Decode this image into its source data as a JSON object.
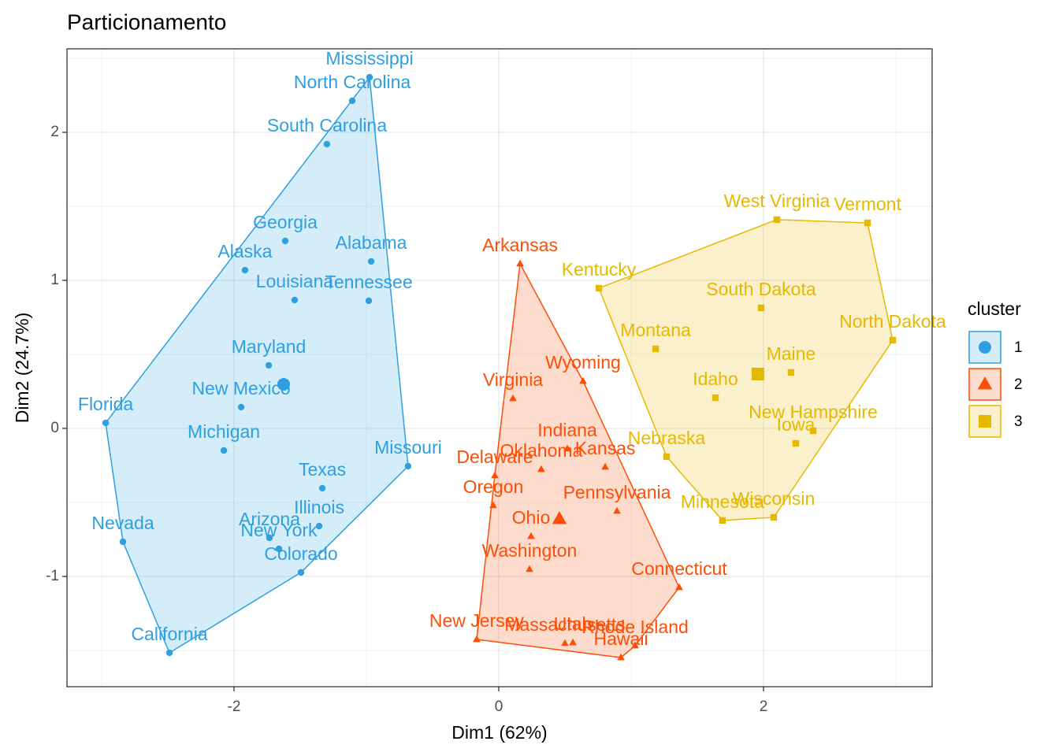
{
  "chart_data": {
    "type": "scatter",
    "title": "Particionamento",
    "x_label": "Dim1 (62%)",
    "y_label": "Dim2 (24.7%)",
    "xlim": [
      -3.262,
      3.274
    ],
    "ylim": [
      -1.745,
      2.564
    ],
    "xticks": [
      -2,
      0,
      2
    ],
    "yticks": [
      -1,
      0,
      1,
      2
    ],
    "grid": true,
    "legend_title": "cluster",
    "legend_position": "right",
    "series": [
      {
        "name": "1",
        "color": "#2E9FDF",
        "shape": "circle",
        "centroid": [
          -1.625,
          0.298
        ],
        "labels": [
          "Mississippi",
          "North Carolina",
          "South Carolina",
          "Georgia",
          "Alaska",
          "Alabama",
          "Louisiana",
          "Tennessee",
          "Maryland",
          "New Mexico",
          "Florida",
          "Michigan",
          "Missouri",
          "Texas",
          "Illinois",
          "Arizona",
          "New York",
          "Colorado",
          "Nevada",
          "California"
        ],
        "x": [
          -0.976,
          -1.107,
          -1.298,
          -1.613,
          -1.917,
          -0.964,
          -1.542,
          -0.982,
          -1.738,
          -1.946,
          -2.97,
          -2.077,
          -0.685,
          -1.333,
          -1.357,
          -1.732,
          -1.661,
          -1.494,
          -2.839,
          -2.488
        ],
        "y": [
          2.372,
          2.213,
          1.92,
          1.266,
          1.069,
          1.128,
          0.867,
          0.862,
          0.426,
          0.144,
          0.037,
          -0.149,
          -0.255,
          -0.404,
          -0.66,
          -0.739,
          -0.814,
          -0.973,
          -0.766,
          -1.516
        ]
      },
      {
        "name": "2",
        "color": "#FC4E07",
        "shape": "triangle",
        "centroid": [
          0.458,
          -0.612
        ],
        "labels": [
          "Arkansas",
          "Virginia",
          "Wyoming",
          "Indiana",
          "Oklahoma",
          "Kansas",
          "Delaware",
          "Oregon",
          "Pennsylvania",
          "Ohio",
          "Washington",
          "Connecticut",
          "New Jersey",
          "Massachusetts",
          "Utah",
          "Rhode Island",
          "Hawaii"
        ],
        "x": [
          0.161,
          0.107,
          0.637,
          0.518,
          0.321,
          0.804,
          -0.03,
          -0.042,
          0.893,
          0.244,
          0.232,
          1.363,
          -0.167,
          0.5,
          0.56,
          1.03,
          0.923
        ],
        "y": [
          1.112,
          0.202,
          0.319,
          -0.138,
          -0.277,
          -0.261,
          -0.319,
          -0.521,
          -0.559,
          -0.729,
          -0.952,
          -1.074,
          -1.426,
          -1.452,
          -1.447,
          -1.468,
          -1.548
        ]
      },
      {
        "name": "3",
        "color": "#E7B800",
        "shape": "square",
        "centroid": [
          1.958,
          0.367
        ],
        "labels": [
          "West Virginia",
          "Vermont",
          "Kentucky",
          "South Dakota",
          "North Dakota",
          "Montana",
          "Maine",
          "Idaho",
          "New Hampshire",
          "Iowa",
          "Nebraska",
          "Minnesota",
          "Wisconsin"
        ],
        "x": [
          2.101,
          2.786,
          0.756,
          1.982,
          2.976,
          1.185,
          2.208,
          1.637,
          2.375,
          2.244,
          1.268,
          1.69,
          2.077
        ],
        "y": [
          1.41,
          1.388,
          0.947,
          0.814,
          0.596,
          0.537,
          0.378,
          0.207,
          -0.016,
          -0.101,
          -0.191,
          -0.622,
          -0.601
        ]
      }
    ]
  }
}
